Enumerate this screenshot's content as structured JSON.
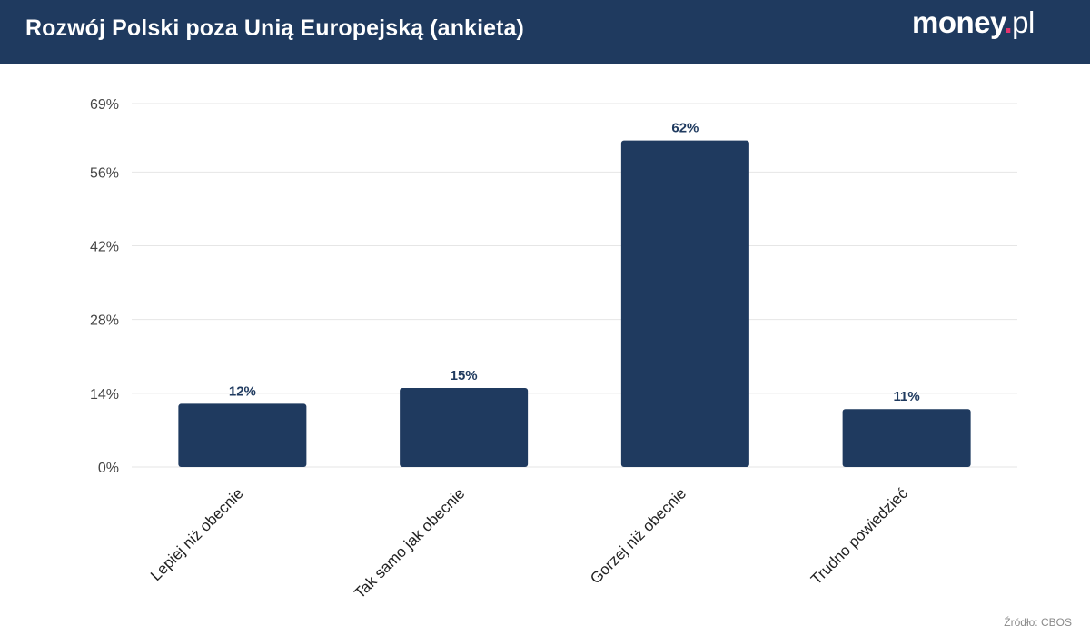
{
  "header": {
    "title": "Rozwój Polski poza Unią Europejską (ankieta)",
    "logo": {
      "main": "money",
      "dot": ".",
      "suffix": "pl"
    }
  },
  "source": "Źródło: CBOS",
  "colors": {
    "header_bg": "#1f3a5f",
    "bar": "#1f3a5f",
    "logo_dot": "#e5336f"
  },
  "chart_data": {
    "type": "bar",
    "title": "",
    "xlabel": "",
    "ylabel": "",
    "categories": [
      "Lepiej niż obecnie",
      "Tak samo jak obecnie",
      "Gorzej niż obecnie",
      "Trudno powiedzieć"
    ],
    "values": [
      12,
      15,
      62,
      11
    ],
    "value_labels": [
      "12%",
      "15%",
      "62%",
      "11%"
    ],
    "ylim": [
      0,
      69
    ],
    "yticks": [
      0,
      14,
      28,
      42,
      56,
      69
    ],
    "ytick_labels": [
      "0%",
      "14%",
      "28%",
      "42%",
      "56%",
      "69%"
    ],
    "grid": true,
    "legend": "none"
  }
}
